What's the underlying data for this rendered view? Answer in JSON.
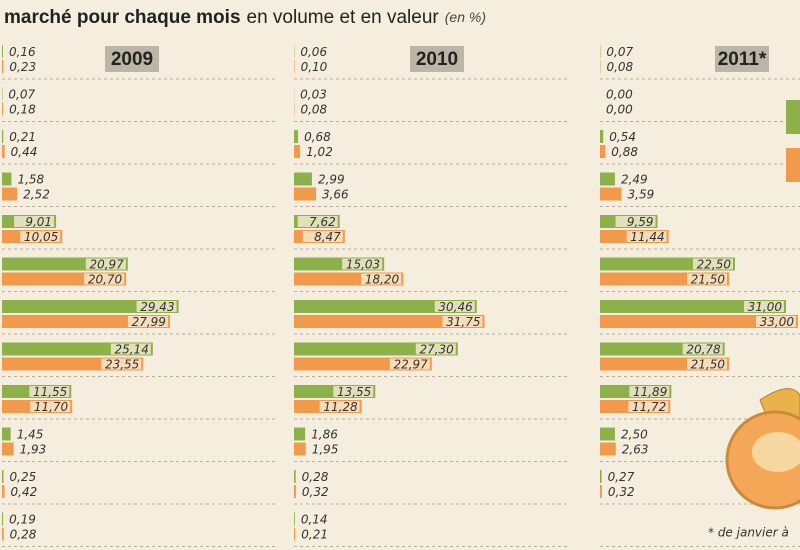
{
  "title_bold": "marché pour chaque mois",
  "title_normal": "en volume et en valeur",
  "title_unit": "(en %)",
  "footnote": "* de janvier à",
  "chart_data": [
    {
      "type": "bar",
      "title": "2009",
      "series": [
        {
          "color": "#8db14a",
          "values": [
            0.16,
            0.07,
            0.21,
            1.58,
            9.01,
            20.97,
            29.43,
            25.14,
            11.55,
            1.45,
            0.25,
            0.19
          ],
          "value_labels": [
            "0,16",
            "0,07",
            "0,21",
            "1,58",
            "9,01",
            "20,97",
            "29,43",
            "25,14",
            "11,55",
            "1,45",
            "0,25",
            "0,19"
          ]
        },
        {
          "color": "#f29a4c",
          "values": [
            0.23,
            0.18,
            0.44,
            2.52,
            10.05,
            20.7,
            27.99,
            23.55,
            11.7,
            1.93,
            0.42,
            0.28
          ],
          "value_labels": [
            "0,23",
            "0,18",
            "0,44",
            "2,52",
            "10,05",
            "20,70",
            "27,99",
            "23,55",
            "11,70",
            "1,93",
            "0,42",
            "0,28"
          ]
        }
      ]
    },
    {
      "type": "bar",
      "title": "2010",
      "series": [
        {
          "color": "#8db14a",
          "values": [
            0.06,
            0.03,
            0.68,
            2.99,
            7.62,
            15.03,
            30.46,
            27.3,
            13.55,
            1.86,
            0.28,
            0.14
          ],
          "value_labels": [
            "0,06",
            "0,03",
            "0,68",
            "2,99",
            "7,62",
            "15,03",
            "30,46",
            "27,30",
            "13,55",
            "1,86",
            "0,28",
            "0,14"
          ]
        },
        {
          "color": "#f29a4c",
          "values": [
            0.1,
            0.08,
            1.02,
            3.66,
            8.47,
            18.2,
            31.75,
            22.97,
            11.28,
            1.95,
            0.32,
            0.21
          ],
          "value_labels": [
            "0,10",
            "0,08",
            "1,02",
            "3,66",
            "8,47",
            "18,20",
            "31,75",
            "22,97",
            "11,28",
            "1,95",
            "0,32",
            "0,21"
          ]
        }
      ]
    },
    {
      "type": "bar",
      "title": "2011*",
      "series": [
        {
          "color": "#8db14a",
          "values": [
            0.07,
            0.0,
            0.54,
            2.49,
            9.59,
            22.5,
            31.0,
            20.78,
            11.89,
            2.5,
            0.27,
            null
          ],
          "value_labels": [
            "0,07",
            "0,00",
            "0,54",
            "2,49",
            "9,59",
            "22,50",
            "31,00",
            "20,78",
            "11,89",
            "2,50",
            "0,27",
            null
          ]
        },
        {
          "color": "#f29a4c",
          "values": [
            0.08,
            0.0,
            0.88,
            3.59,
            11.44,
            21.5,
            33.0,
            21.5,
            11.72,
            2.63,
            0.32,
            null
          ],
          "value_labels": [
            "0,08",
            "0,00",
            "0,88",
            "3,59",
            "11,44",
            "21,50",
            "33,00",
            "21,50",
            "11,72",
            "2,63",
            "0,32",
            null
          ]
        }
      ]
    }
  ]
}
